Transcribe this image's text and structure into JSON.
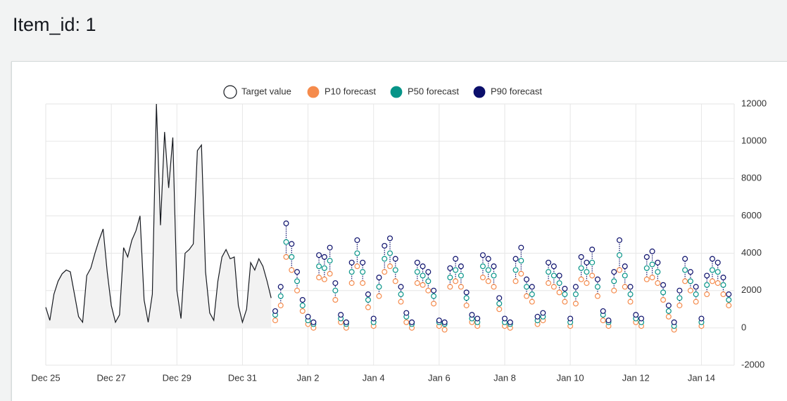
{
  "header": {
    "title": "Item_id: 1"
  },
  "chart_data": {
    "type": "line",
    "x": [
      "Dec 25 00:00",
      "Dec 25 03:00",
      "Dec 25 06:00",
      "Dec 25 09:00",
      "Dec 25 12:00",
      "Dec 25 15:00",
      "Dec 25 18:00",
      "Dec 25 21:00",
      "Dec 26 00:00",
      "Dec 26 03:00",
      "Dec 26 06:00",
      "Dec 26 09:00",
      "Dec 26 12:00",
      "Dec 26 15:00",
      "Dec 26 18:00",
      "Dec 26 21:00",
      "Dec 27 00:00",
      "Dec 27 03:00",
      "Dec 27 06:00",
      "Dec 27 09:00",
      "Dec 27 12:00",
      "Dec 27 15:00",
      "Dec 27 18:00",
      "Dec 27 21:00",
      "Dec 28 00:00",
      "Dec 28 03:00",
      "Dec 28 06:00",
      "Dec 28 09:00",
      "Dec 28 12:00",
      "Dec 28 15:00",
      "Dec 28 18:00",
      "Dec 28 21:00",
      "Dec 29 00:00",
      "Dec 29 03:00",
      "Dec 29 06:00",
      "Dec 29 09:00",
      "Dec 29 12:00",
      "Dec 29 15:00",
      "Dec 29 18:00",
      "Dec 29 21:00",
      "Dec 30 00:00",
      "Dec 30 03:00",
      "Dec 30 06:00",
      "Dec 30 09:00",
      "Dec 30 12:00",
      "Dec 30 15:00",
      "Dec 30 18:00",
      "Dec 30 21:00",
      "Dec 31 00:00",
      "Dec 31 03:00",
      "Dec 31 06:00",
      "Dec 31 09:00",
      "Dec 31 12:00",
      "Dec 31 15:00",
      "Dec 31 18:00",
      "Dec 31 21:00",
      "Jan 1 00:00",
      "Jan 1 04:00",
      "Jan 1 08:00",
      "Jan 1 12:00",
      "Jan 1 16:00",
      "Jan 1 20:00",
      "Jan 2 00:00",
      "Jan 2 04:00",
      "Jan 2 08:00",
      "Jan 2 12:00",
      "Jan 2 16:00",
      "Jan 2 20:00",
      "Jan 3 00:00",
      "Jan 3 04:00",
      "Jan 3 08:00",
      "Jan 3 12:00",
      "Jan 3 16:00",
      "Jan 3 20:00",
      "Jan 4 00:00",
      "Jan 4 04:00",
      "Jan 4 08:00",
      "Jan 4 12:00",
      "Jan 4 16:00",
      "Jan 4 20:00",
      "Jan 5 00:00",
      "Jan 5 04:00",
      "Jan 5 08:00",
      "Jan 5 12:00",
      "Jan 5 16:00",
      "Jan 5 20:00",
      "Jan 6 00:00",
      "Jan 6 04:00",
      "Jan 6 08:00",
      "Jan 6 12:00",
      "Jan 6 16:00",
      "Jan 6 20:00",
      "Jan 7 00:00",
      "Jan 7 04:00",
      "Jan 7 08:00",
      "Jan 7 12:00",
      "Jan 7 16:00",
      "Jan 7 20:00",
      "Jan 8 00:00",
      "Jan 8 04:00",
      "Jan 8 08:00",
      "Jan 8 12:00",
      "Jan 8 16:00",
      "Jan 8 20:00",
      "Jan 9 00:00",
      "Jan 9 04:00",
      "Jan 9 08:00",
      "Jan 9 12:00",
      "Jan 9 16:00",
      "Jan 9 20:00",
      "Jan 10 00:00",
      "Jan 10 04:00",
      "Jan 10 08:00",
      "Jan 10 12:00",
      "Jan 10 16:00",
      "Jan 10 20:00",
      "Jan 11 00:00",
      "Jan 11 04:00",
      "Jan 11 08:00",
      "Jan 11 12:00",
      "Jan 11 16:00",
      "Jan 11 20:00",
      "Jan 12 00:00",
      "Jan 12 04:00",
      "Jan 12 08:00",
      "Jan 12 12:00",
      "Jan 12 16:00",
      "Jan 12 20:00",
      "Jan 13 00:00",
      "Jan 13 04:00",
      "Jan 13 08:00",
      "Jan 13 12:00",
      "Jan 13 16:00",
      "Jan 13 20:00",
      "Jan 14 00:00",
      "Jan 14 04:00",
      "Jan 14 08:00",
      "Jan 14 12:00",
      "Jan 14 16:00",
      "Jan 14 20:00"
    ],
    "series": [
      {
        "name": "Target value",
        "color": "#16191f",
        "fill": "#f2f2f2",
        "style": "area",
        "values": [
          1100,
          400,
          1800,
          2500,
          2900,
          3100,
          3000,
          1800,
          600,
          300,
          2800,
          3200,
          4000,
          4700,
          5300,
          3000,
          1200,
          300,
          700,
          4300,
          3800,
          4700,
          5200,
          6000,
          1500,
          300,
          1800,
          12000,
          5500,
          10500,
          7500,
          10200,
          2000,
          500,
          4000,
          4200,
          4500,
          9500,
          9800,
          3000,
          800,
          400,
          2500,
          3800,
          4200,
          3700,
          3800,
          1200,
          300,
          1000,
          3500,
          3100,
          3700,
          3300,
          2500,
          1600,
          null,
          null,
          null,
          null,
          null,
          null,
          null,
          null,
          null,
          null,
          null,
          null,
          null,
          null,
          null,
          null,
          null,
          null,
          null,
          null,
          null,
          null,
          null,
          null,
          null,
          null,
          null,
          null,
          null,
          null,
          null,
          null,
          null,
          null,
          null,
          null,
          null,
          null,
          null,
          null,
          null,
          null,
          null,
          null,
          null,
          null,
          null,
          null,
          null,
          null,
          null,
          null,
          null,
          null,
          null,
          null,
          null,
          null,
          null,
          null,
          null,
          null,
          null,
          null,
          null,
          null,
          null,
          null,
          null,
          null,
          null,
          null,
          null,
          null,
          null,
          null,
          null,
          null,
          null,
          null,
          null,
          null,
          null,
          null
        ]
      },
      {
        "name": "P10 forecast",
        "color": "#f58b4c",
        "style": "points",
        "values": [
          null,
          null,
          null,
          null,
          null,
          null,
          null,
          null,
          null,
          null,
          null,
          null,
          null,
          null,
          null,
          null,
          null,
          null,
          null,
          null,
          null,
          null,
          null,
          null,
          null,
          null,
          null,
          null,
          null,
          null,
          null,
          null,
          null,
          null,
          null,
          null,
          null,
          null,
          null,
          null,
          null,
          null,
          null,
          null,
          null,
          null,
          null,
          null,
          null,
          null,
          null,
          null,
          null,
          null,
          null,
          null,
          400,
          1200,
          3800,
          3100,
          2000,
          900,
          200,
          0,
          2700,
          2600,
          2900,
          1500,
          300,
          0,
          2400,
          3300,
          2400,
          1100,
          100,
          1700,
          3000,
          3300,
          2500,
          1400,
          300,
          0,
          2400,
          2300,
          2000,
          1300,
          100,
          -100,
          2200,
          2500,
          2200,
          1200,
          300,
          100,
          2700,
          2500,
          2200,
          1000,
          100,
          0,
          2500,
          2900,
          1700,
          1400,
          200,
          400,
          2400,
          2200,
          1900,
          1400,
          100,
          1300,
          2600,
          2400,
          2800,
          1700,
          400,
          100,
          2000,
          3100,
          2200,
          1400,
          300,
          100,
          2600,
          2700,
          2400,
          1500,
          600,
          -100,
          1200,
          2500,
          2000,
          1400,
          100,
          1800,
          2500,
          2400,
          1800,
          1200
        ]
      },
      {
        "name": "P50 forecast",
        "color": "#069488",
        "style": "points",
        "values": [
          null,
          null,
          null,
          null,
          null,
          null,
          null,
          null,
          null,
          null,
          null,
          null,
          null,
          null,
          null,
          null,
          null,
          null,
          null,
          null,
          null,
          null,
          null,
          null,
          null,
          null,
          null,
          null,
          null,
          null,
          null,
          null,
          null,
          null,
          null,
          null,
          null,
          null,
          null,
          null,
          null,
          null,
          null,
          null,
          null,
          null,
          null,
          null,
          null,
          null,
          null,
          null,
          null,
          null,
          null,
          null,
          700,
          1700,
          4600,
          3800,
          2500,
          1200,
          400,
          200,
          3300,
          3200,
          3600,
          2000,
          500,
          200,
          3000,
          4000,
          3000,
          1500,
          300,
          2200,
          3700,
          4000,
          3100,
          1800,
          600,
          200,
          3000,
          2800,
          2500,
          1700,
          300,
          200,
          2700,
          3100,
          2800,
          1600,
          500,
          300,
          3300,
          3100,
          2800,
          1300,
          300,
          200,
          3100,
          3600,
          2200,
          1800,
          400,
          600,
          3000,
          2800,
          2400,
          1800,
          300,
          1800,
          3200,
          3000,
          3500,
          2200,
          700,
          300,
          2500,
          3900,
          2800,
          1800,
          500,
          300,
          3200,
          3400,
          3000,
          1900,
          900,
          100,
          1600,
          3100,
          2500,
          1800,
          300,
          2300,
          3100,
          3000,
          2300,
          1500
        ]
      },
      {
        "name": "P90 forecast",
        "color": "#0b0f6b",
        "style": "points",
        "values": [
          null,
          null,
          null,
          null,
          null,
          null,
          null,
          null,
          null,
          null,
          null,
          null,
          null,
          null,
          null,
          null,
          null,
          null,
          null,
          null,
          null,
          null,
          null,
          null,
          null,
          null,
          null,
          null,
          null,
          null,
          null,
          null,
          null,
          null,
          null,
          null,
          null,
          null,
          null,
          null,
          null,
          null,
          null,
          null,
          null,
          null,
          null,
          null,
          null,
          null,
          null,
          null,
          null,
          null,
          null,
          null,
          900,
          2200,
          5600,
          4500,
          3000,
          1500,
          600,
          300,
          3900,
          3800,
          4300,
          2400,
          700,
          300,
          3500,
          4700,
          3500,
          1800,
          500,
          2700,
          4400,
          4800,
          3700,
          2200,
          800,
          300,
          3500,
          3300,
          3000,
          2000,
          400,
          300,
          3200,
          3700,
          3300,
          1900,
          700,
          500,
          3900,
          3700,
          3300,
          1600,
          500,
          300,
          3700,
          4300,
          2600,
          2200,
          600,
          800,
          3500,
          3300,
          2800,
          2100,
          500,
          2200,
          3800,
          3500,
          4200,
          2600,
          900,
          400,
          3000,
          4700,
          3300,
          2200,
          700,
          500,
          3800,
          4100,
          3500,
          2300,
          1200,
          300,
          2000,
          3700,
          3000,
          2200,
          500,
          2800,
          3700,
          3500,
          2700,
          1800
        ]
      }
    ],
    "xlim": [
      "Dec 25 00:00",
      "Jan 15 00:00"
    ],
    "xticks": [
      "Dec 25",
      "Dec 27",
      "Dec 29",
      "Dec 31",
      "Jan 2",
      "Jan 4",
      "Jan 6",
      "Jan 8",
      "Jan 10",
      "Jan 12",
      "Jan 14"
    ],
    "ylim": [
      -2000,
      12000
    ],
    "yticks": [
      -2000,
      0,
      2000,
      4000,
      6000,
      8000,
      10000,
      12000
    ],
    "grid": true,
    "legend": "top"
  }
}
